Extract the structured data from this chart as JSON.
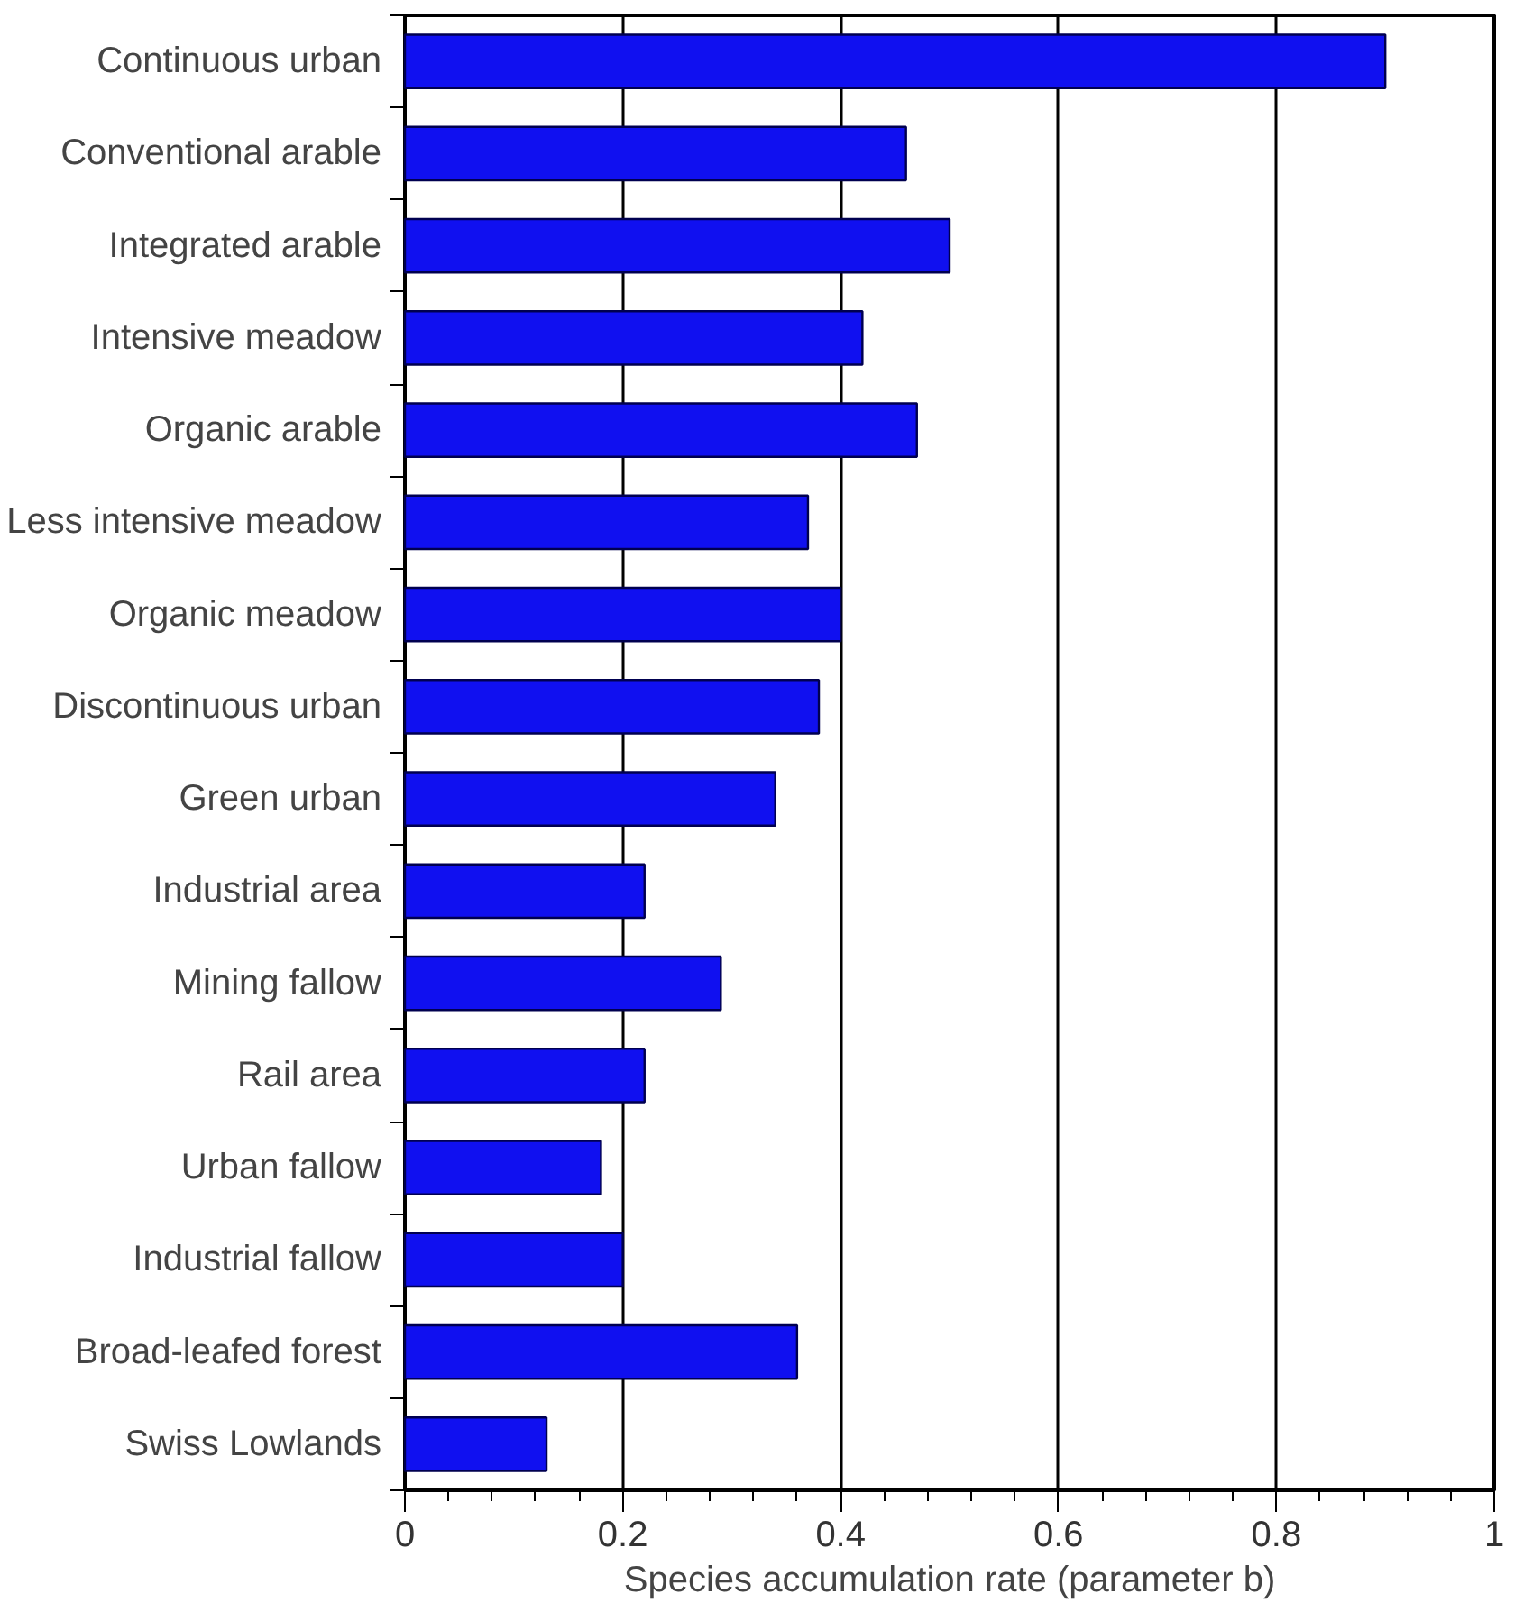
{
  "chart_data": {
    "type": "bar",
    "orientation": "horizontal",
    "xlabel": "Species accumulation rate (parameter b)",
    "categories": [
      "Continuous urban",
      "Conventional arable",
      "Integrated arable",
      "Intensive meadow",
      "Organic arable",
      "Less intensive meadow",
      "Organic meadow",
      "Discontinuous urban",
      "Green urban",
      "Industrial area",
      "Mining fallow",
      "Rail area",
      "Urban fallow",
      "Industrial fallow",
      "Broad-leafed forest",
      "Swiss Lowlands"
    ],
    "values": [
      0.9,
      0.46,
      0.5,
      0.42,
      0.47,
      0.37,
      0.4,
      0.38,
      0.34,
      0.22,
      0.29,
      0.22,
      0.18,
      0.2,
      0.36,
      0.13
    ],
    "color": "#1010f0",
    "xlim": [
      0,
      1
    ],
    "xticks": [
      0,
      0.2,
      0.4,
      0.6,
      0.8,
      1
    ],
    "grid": "x"
  }
}
